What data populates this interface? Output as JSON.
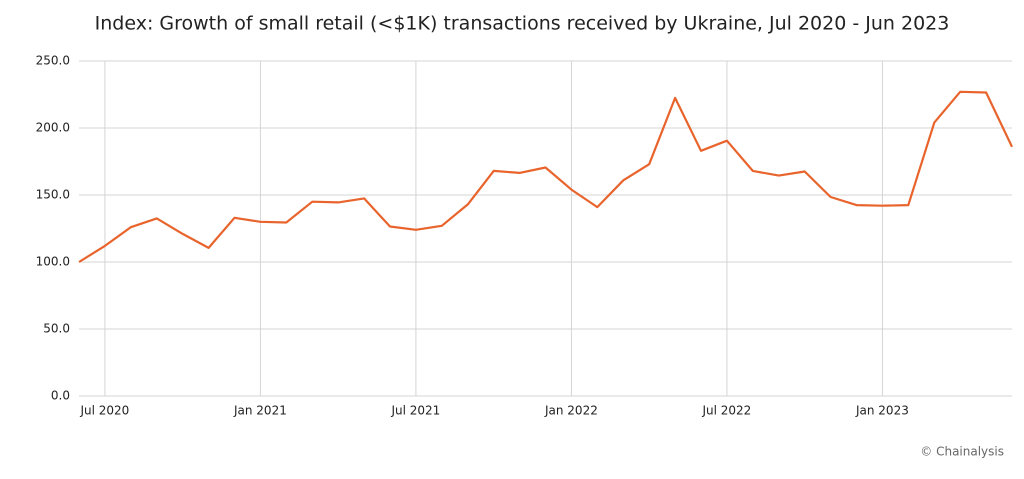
{
  "chart_data": {
    "type": "line",
    "title": "Index: Growth of small retail (<$1K) transactions received by Ukraine, Jul 2020 - Jun 2023",
    "source": "© Chainalysis",
    "categories": [
      null,
      "Jul 2020",
      null,
      null,
      null,
      null,
      null,
      "Jan 2021",
      null,
      null,
      null,
      null,
      null,
      "Jul 2021",
      null,
      null,
      null,
      null,
      null,
      "Jan 2022",
      null,
      null,
      null,
      null,
      null,
      "Jul 2022",
      null,
      null,
      null,
      null,
      null,
      "Jan 2023",
      null,
      null,
      null,
      null,
      null
    ],
    "series": [
      {
        "name": "Index",
        "color": "#e8642c",
        "values": [
          100,
          112,
          126,
          132.5,
          121,
          110.5,
          133,
          130,
          129.5,
          145,
          144.5,
          147.5,
          126.5,
          124,
          127,
          143,
          168,
          166.5,
          170.5,
          154,
          141,
          161,
          173,
          222.5,
          183,
          190.5,
          168,
          164.5,
          167.5,
          148.5,
          142.5,
          142,
          142.5,
          204,
          227,
          226.5,
          186
        ]
      }
    ],
    "ylim": [
      0,
      250
    ],
    "yticks": [
      {
        "value": 0,
        "label": "0.0"
      },
      {
        "value": 50,
        "label": "50.0"
      },
      {
        "value": 100,
        "label": "100.0"
      },
      {
        "value": 150,
        "label": "150.0"
      },
      {
        "value": 200,
        "label": "200.0"
      },
      {
        "value": 250,
        "label": "250.0"
      }
    ],
    "grid": true
  }
}
